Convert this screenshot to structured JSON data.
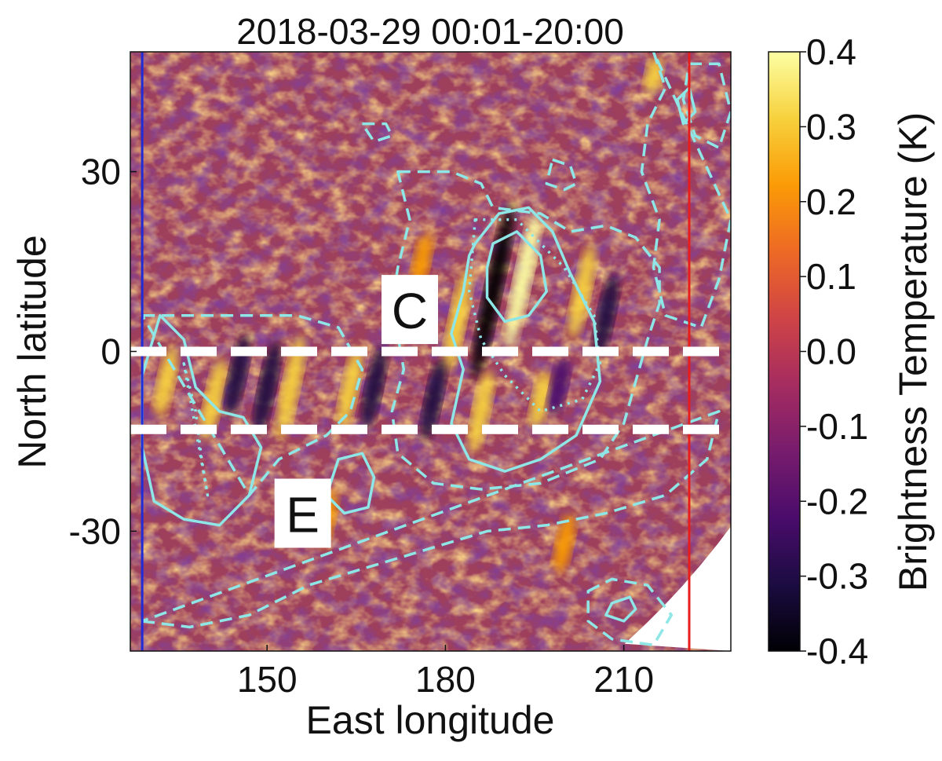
{
  "chart_data": {
    "type": "heatmap",
    "title": "2018-03-29 00:01-20:00",
    "xlabel": "East longitude",
    "ylabel": "North latitude",
    "xlim": [
      127,
      228
    ],
    "ylim": [
      -50,
      50
    ],
    "xticks": [
      150,
      180,
      210
    ],
    "yticks": [
      30,
      0,
      -30
    ],
    "colorbar": {
      "label": "Brightness Temperature (K)",
      "range": [
        -0.4,
        0.4
      ],
      "ticks": [
        "0.4",
        "0.3",
        "0.2",
        "0.1",
        "0.0",
        "-0.1",
        "-0.2",
        "-0.3",
        "-0.4"
      ],
      "colormap": "inferno",
      "stops": [
        "#000004",
        "#1b0c41",
        "#4a0c6b",
        "#781c6d",
        "#a52c60",
        "#cf4446",
        "#ed6925",
        "#fb9b06",
        "#f7d13d",
        "#fcffa4"
      ]
    },
    "reference_lines": [
      {
        "type": "vertical",
        "x": 129,
        "color": "#1f2bd6"
      },
      {
        "type": "vertical",
        "x": 221,
        "color": "#e81c1c"
      },
      {
        "type": "horizontal-dashed",
        "y": 0,
        "color": "#ffffff"
      },
      {
        "type": "horizontal-dashed",
        "y": -13,
        "color": "#ffffff"
      }
    ],
    "annotations": [
      {
        "text": "C",
        "x": 174,
        "y": 7
      },
      {
        "text": "E",
        "x": 156,
        "y": -27
      }
    ],
    "features": [
      {
        "kind": "dark",
        "x": 188,
        "y": 10,
        "height": 30,
        "intensity": -0.4
      },
      {
        "kind": "bright",
        "x": 193,
        "y": 12,
        "height": 24,
        "intensity": 0.4
      },
      {
        "kind": "bright",
        "x": 182,
        "y": 5,
        "height": 18,
        "intensity": 0.35
      },
      {
        "kind": "dark",
        "x": 178,
        "y": -8,
        "height": 14,
        "intensity": -0.3
      },
      {
        "kind": "bright",
        "x": 186,
        "y": -10,
        "height": 14,
        "intensity": 0.35
      },
      {
        "kind": "bright",
        "x": 203,
        "y": 10,
        "height": 16,
        "intensity": 0.3
      },
      {
        "kind": "bright",
        "x": 154,
        "y": -6,
        "height": 18,
        "intensity": 0.35
      },
      {
        "kind": "dark",
        "x": 150,
        "y": -6,
        "height": 16,
        "intensity": -0.3
      },
      {
        "kind": "bright",
        "x": 141,
        "y": -8,
        "height": 14,
        "intensity": 0.3
      },
      {
        "kind": "dark",
        "x": 145,
        "y": -4,
        "height": 14,
        "intensity": -0.3
      },
      {
        "kind": "bright",
        "x": 164,
        "y": -6,
        "height": 14,
        "intensity": 0.3
      },
      {
        "kind": "dark",
        "x": 168,
        "y": -6,
        "height": 14,
        "intensity": -0.3
      },
      {
        "kind": "bright",
        "x": 133,
        "y": -5,
        "height": 12,
        "intensity": 0.28
      },
      {
        "kind": "dark",
        "x": 207,
        "y": 6,
        "height": 14,
        "intensity": -0.28
      },
      {
        "kind": "bright",
        "x": 215,
        "y": 46,
        "height": 6,
        "intensity": 0.35
      },
      {
        "kind": "bright",
        "x": 196,
        "y": -8,
        "height": 10,
        "intensity": 0.3
      },
      {
        "kind": "dark",
        "x": 199,
        "y": -6,
        "height": 10,
        "intensity": -0.25
      },
      {
        "kind": "bright",
        "x": 176,
        "y": 15,
        "height": 10,
        "intensity": 0.2
      },
      {
        "kind": "bright",
        "x": 160,
        "y": -28,
        "height": 10,
        "intensity": 0.18
      },
      {
        "kind": "bright",
        "x": 200,
        "y": -32,
        "height": 10,
        "intensity": 0.18
      }
    ],
    "contour_color": "#8ee6e6",
    "contours": [
      {
        "style": "solid",
        "points": [
          [
            185,
            18
          ],
          [
            189,
            23
          ],
          [
            194,
            24
          ],
          [
            198,
            20
          ],
          [
            201,
            13
          ],
          [
            205,
            5
          ],
          [
            206,
            -5
          ],
          [
            202,
            -14
          ],
          [
            196,
            -18
          ],
          [
            190,
            -20
          ],
          [
            184,
            -18
          ],
          [
            181,
            -12
          ],
          [
            183,
            -3
          ],
          [
            181,
            3
          ],
          [
            183,
            10
          ],
          [
            184,
            16
          ]
        ]
      },
      {
        "style": "solid",
        "points": [
          [
            188,
            18
          ],
          [
            192,
            20
          ],
          [
            196,
            16
          ],
          [
            197,
            10
          ],
          [
            194,
            6
          ],
          [
            190,
            5
          ],
          [
            187,
            9
          ],
          [
            187,
            14
          ]
        ]
      },
      {
        "style": "solid",
        "points": [
          [
            132,
            6
          ],
          [
            136,
            2
          ],
          [
            138,
            -6
          ],
          [
            142,
            -10
          ],
          [
            146,
            -11
          ],
          [
            149,
            -16
          ],
          [
            147,
            -24
          ],
          [
            142,
            -29
          ],
          [
            136,
            -28
          ],
          [
            131,
            -25
          ],
          [
            129,
            -16
          ],
          [
            129,
            -4
          ]
        ]
      },
      {
        "style": "solid",
        "points": [
          [
            162,
            -18
          ],
          [
            166,
            -17
          ],
          [
            168,
            -21
          ],
          [
            167,
            -26
          ],
          [
            163,
            -27
          ],
          [
            160,
            -24
          ]
        ]
      },
      {
        "style": "solid",
        "points": [
          [
            208,
            -42
          ],
          [
            211,
            -41
          ],
          [
            212,
            -43
          ],
          [
            210,
            -45
          ],
          [
            207,
            -44
          ]
        ]
      },
      {
        "style": "solid",
        "points": [
          [
            219,
            42
          ],
          [
            221,
            44
          ],
          [
            222,
            40
          ],
          [
            220,
            38
          ]
        ]
      },
      {
        "style": "dashed",
        "points": [
          [
            172,
            30
          ],
          [
            176,
            30
          ],
          [
            181,
            30
          ],
          [
            186,
            28
          ],
          [
            188,
            24
          ],
          [
            196,
            23
          ],
          [
            201,
            20
          ],
          [
            207,
            21
          ],
          [
            212,
            19
          ],
          [
            216,
            14
          ],
          [
            216,
            8
          ],
          [
            214,
            2
          ],
          [
            212,
            -5
          ],
          [
            210,
            -12
          ],
          [
            206,
            -18
          ],
          [
            196,
            -22
          ],
          [
            186,
            -23
          ],
          [
            178,
            -22
          ],
          [
            172,
            -17
          ],
          [
            171,
            -10
          ],
          [
            173,
            -3
          ],
          [
            171,
            8
          ],
          [
            172,
            14
          ],
          [
            174,
            22
          ]
        ]
      },
      {
        "style": "dashed",
        "points": [
          [
            129,
            6
          ],
          [
            137,
            6
          ],
          [
            147,
            6
          ],
          [
            155,
            6
          ],
          [
            162,
            4
          ],
          [
            166,
            -3
          ],
          [
            164,
            -10
          ],
          [
            160,
            -14
          ],
          [
            152,
            -18
          ],
          [
            147,
            -24
          ]
        ]
      },
      {
        "style": "dashed",
        "points": [
          [
            129,
            -45
          ],
          [
            137,
            -46
          ],
          [
            147,
            -44
          ],
          [
            157,
            -39
          ],
          [
            167,
            -36
          ],
          [
            177,
            -33
          ],
          [
            187,
            -30
          ],
          [
            197,
            -29
          ],
          [
            207,
            -27
          ],
          [
            217,
            -24
          ],
          [
            224,
            -18
          ],
          [
            226,
            -10
          ]
        ]
      },
      {
        "style": "dashed",
        "points": [
          [
            204,
            -40
          ],
          [
            208,
            -38
          ],
          [
            214,
            -39
          ],
          [
            218,
            -44
          ],
          [
            215,
            -49
          ],
          [
            208,
            -48
          ],
          [
            204,
            -45
          ]
        ]
      },
      {
        "style": "dashed",
        "points": [
          [
            215,
            50
          ],
          [
            217,
            44
          ],
          [
            214,
            38
          ],
          [
            213,
            30
          ],
          [
            216,
            22
          ],
          [
            215,
            14
          ],
          [
            217,
            6
          ],
          [
            223,
            4
          ],
          [
            226,
            12
          ],
          [
            228,
            22
          ]
        ]
      },
      {
        "style": "dashed",
        "points": [
          [
            221,
            48
          ],
          [
            226,
            48
          ],
          [
            228,
            40
          ],
          [
            226,
            34
          ],
          [
            222,
            36
          ],
          [
            220,
            42
          ]
        ]
      },
      {
        "style": "dashed",
        "points": [
          [
            198,
            32
          ],
          [
            201,
            31
          ],
          [
            202,
            28
          ],
          [
            200,
            27
          ],
          [
            197,
            28
          ]
        ]
      },
      {
        "style": "dashed",
        "points": [
          [
            166,
            38
          ],
          [
            170,
            38
          ],
          [
            171,
            36
          ],
          [
            168,
            35
          ]
        ]
      },
      {
        "style": "dotted",
        "points": [
          [
            185,
            22
          ],
          [
            192,
            22
          ],
          [
            200,
            14
          ],
          [
            205,
            6
          ],
          [
            206,
            -2
          ],
          [
            203,
            -8
          ],
          [
            196,
            -10
          ],
          [
            190,
            -4
          ],
          [
            186,
            2
          ],
          [
            184,
            10
          ]
        ]
      },
      {
        "style": "dotted",
        "points": [
          [
            136,
            -2
          ],
          [
            138,
            -10
          ],
          [
            139,
            -18
          ],
          [
            140,
            -24
          ]
        ]
      }
    ]
  }
}
